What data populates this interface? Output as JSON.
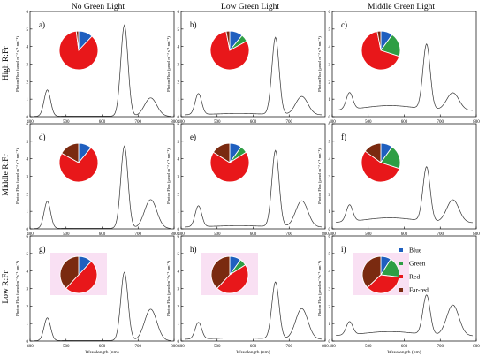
{
  "figure": {
    "column_headers": [
      "No Green Light",
      "Low Green Light",
      "Middle Green Light"
    ],
    "row_headers": [
      "High R:Fr",
      "Middle R:Fr",
      "Low R:Fr"
    ],
    "ylabel": "Photon Flux (µmol m⁻² s⁻¹ nm⁻¹)",
    "xlabel": "Wavelength (nm)",
    "legend": [
      {
        "label": "Blue",
        "color": "#1f5fbf"
      },
      {
        "label": "Green",
        "color": "#2e9e44"
      },
      {
        "label": "Red",
        "color": "#e8171a"
      },
      {
        "label": "Far-red",
        "color": "#7a2a10"
      }
    ]
  },
  "chart_data": [
    {
      "panel": "a)",
      "type": "line",
      "xlim": [
        400,
        800
      ],
      "ylim": [
        0,
        6
      ],
      "xticks": [
        400,
        500,
        600,
        700,
        800
      ],
      "yticks": [
        0,
        1,
        2,
        3,
        4,
        5,
        6
      ],
      "peaks": [
        {
          "x": 448,
          "y": 1.5
        },
        {
          "x": 662,
          "y": 5.2
        },
        {
          "x": 735,
          "y": 1.05
        }
      ],
      "baseline": 0.02,
      "pie": [
        {
          "name": "Blue",
          "value": 12
        },
        {
          "name": "Red",
          "value": 86
        },
        {
          "name": "Far-red",
          "value": 2
        }
      ]
    },
    {
      "panel": "b)",
      "type": "line",
      "xlim": [
        400,
        800
      ],
      "ylim": [
        0,
        6
      ],
      "xticks": [
        400,
        500,
        600,
        700
      ],
      "yticks": [
        0,
        1,
        2,
        3,
        4,
        5,
        6
      ],
      "peaks": [
        {
          "x": 448,
          "y": 1.2
        },
        {
          "x": 662,
          "y": 4.4
        },
        {
          "x": 735,
          "y": 1.05
        }
      ],
      "baseline": 0.1,
      "pie": [
        {
          "name": "Blue",
          "value": 11
        },
        {
          "name": "Green",
          "value": 6
        },
        {
          "name": "Red",
          "value": 80
        },
        {
          "name": "Far-red",
          "value": 3
        }
      ]
    },
    {
      "panel": "c)",
      "type": "line",
      "xlim": [
        400,
        800
      ],
      "ylim": [
        0,
        6
      ],
      "xticks": [
        400,
        500,
        600,
        700,
        800
      ],
      "yticks": [
        0,
        1,
        2,
        3,
        4,
        5,
        6
      ],
      "peaks": [
        {
          "x": 448,
          "y": 0.95
        },
        {
          "x": 662,
          "y": 3.7
        },
        {
          "x": 735,
          "y": 1.0
        }
      ],
      "baseline": 0.35,
      "pie": [
        {
          "name": "Blue",
          "value": 10
        },
        {
          "name": "Green",
          "value": 20
        },
        {
          "name": "Red",
          "value": 67
        },
        {
          "name": "Far-red",
          "value": 3
        }
      ]
    },
    {
      "panel": "d)",
      "type": "line",
      "xlim": [
        400,
        800
      ],
      "ylim": [
        0,
        6
      ],
      "xticks": [
        400,
        500,
        600,
        700,
        800
      ],
      "yticks": [
        0,
        1,
        2,
        3,
        4,
        5,
        6
      ],
      "peaks": [
        {
          "x": 448,
          "y": 1.55
        },
        {
          "x": 662,
          "y": 4.7
        },
        {
          "x": 735,
          "y": 1.65
        }
      ],
      "baseline": 0.02,
      "pie": [
        {
          "name": "Blue",
          "value": 11
        },
        {
          "name": "Red",
          "value": 72
        },
        {
          "name": "Far-red",
          "value": 17
        }
      ]
    },
    {
      "panel": "e)",
      "type": "line",
      "xlim": [
        400,
        800
      ],
      "ylim": [
        0,
        6
      ],
      "xticks": [
        400,
        500,
        600,
        700,
        800
      ],
      "yticks": [
        0,
        1,
        2,
        3,
        4,
        5,
        6
      ],
      "peaks": [
        {
          "x": 448,
          "y": 1.2
        },
        {
          "x": 662,
          "y": 4.35
        },
        {
          "x": 735,
          "y": 1.5
        }
      ],
      "baseline": 0.1,
      "pie": [
        {
          "name": "Blue",
          "value": 10
        },
        {
          "name": "Green",
          "value": 6
        },
        {
          "name": "Red",
          "value": 68
        },
        {
          "name": "Far-red",
          "value": 16
        }
      ]
    },
    {
      "panel": "f)",
      "type": "line",
      "xlim": [
        400,
        800
      ],
      "ylim": [
        0,
        6
      ],
      "xticks": [
        400,
        500,
        600,
        700,
        800
      ],
      "yticks": [
        0,
        1,
        2,
        3,
        4,
        5,
        6
      ],
      "peaks": [
        {
          "x": 448,
          "y": 0.95
        },
        {
          "x": 662,
          "y": 3.1
        },
        {
          "x": 735,
          "y": 1.3
        }
      ],
      "baseline": 0.35,
      "pie": [
        {
          "name": "Blue",
          "value": 10
        },
        {
          "name": "Green",
          "value": 20
        },
        {
          "name": "Red",
          "value": 55
        },
        {
          "name": "Far-red",
          "value": 15
        }
      ]
    },
    {
      "panel": "g)",
      "type": "line",
      "xlim": [
        400,
        800
      ],
      "ylim": [
        0,
        6
      ],
      "xticks": [
        400,
        500,
        600,
        700,
        800
      ],
      "yticks": [
        0,
        1,
        2,
        3,
        4,
        5,
        6
      ],
      "peaks": [
        {
          "x": 448,
          "y": 1.3
        },
        {
          "x": 662,
          "y": 3.9
        },
        {
          "x": 735,
          "y": 1.8
        }
      ],
      "baseline": 0.02,
      "pie": [
        {
          "name": "Blue",
          "value": 12
        },
        {
          "name": "Red",
          "value": 50
        },
        {
          "name": "Far-red",
          "value": 38
        }
      ]
    },
    {
      "panel": "h)",
      "type": "line",
      "xlim": [
        400,
        800
      ],
      "ylim": [
        0,
        6
      ],
      "xticks": [
        400,
        500,
        600,
        700,
        800
      ],
      "yticks": [
        0,
        1,
        2,
        3,
        4,
        5,
        6
      ],
      "peaks": [
        {
          "x": 448,
          "y": 0.95
        },
        {
          "x": 662,
          "y": 3.25
        },
        {
          "x": 735,
          "y": 1.75
        }
      ],
      "baseline": 0.1,
      "pie": [
        {
          "name": "Blue",
          "value": 10
        },
        {
          "name": "Green",
          "value": 6
        },
        {
          "name": "Red",
          "value": 46
        },
        {
          "name": "Far-red",
          "value": 38
        }
      ]
    },
    {
      "panel": "i)",
      "type": "line",
      "xlim": [
        400,
        800
      ],
      "ylim": [
        0,
        6
      ],
      "xticks": [
        400,
        500,
        600,
        700,
        800
      ],
      "yticks": [
        0,
        1,
        2,
        3,
        4,
        5,
        6
      ],
      "peaks": [
        {
          "x": 448,
          "y": 0.75
        },
        {
          "x": 662,
          "y": 2.25
        },
        {
          "x": 735,
          "y": 1.75
        }
      ],
      "baseline": 0.3,
      "pie": [
        {
          "name": "Blue",
          "value": 9
        },
        {
          "name": "Green",
          "value": 18
        },
        {
          "name": "Red",
          "value": 36
        },
        {
          "name": "Far-red",
          "value": 37
        }
      ]
    }
  ]
}
